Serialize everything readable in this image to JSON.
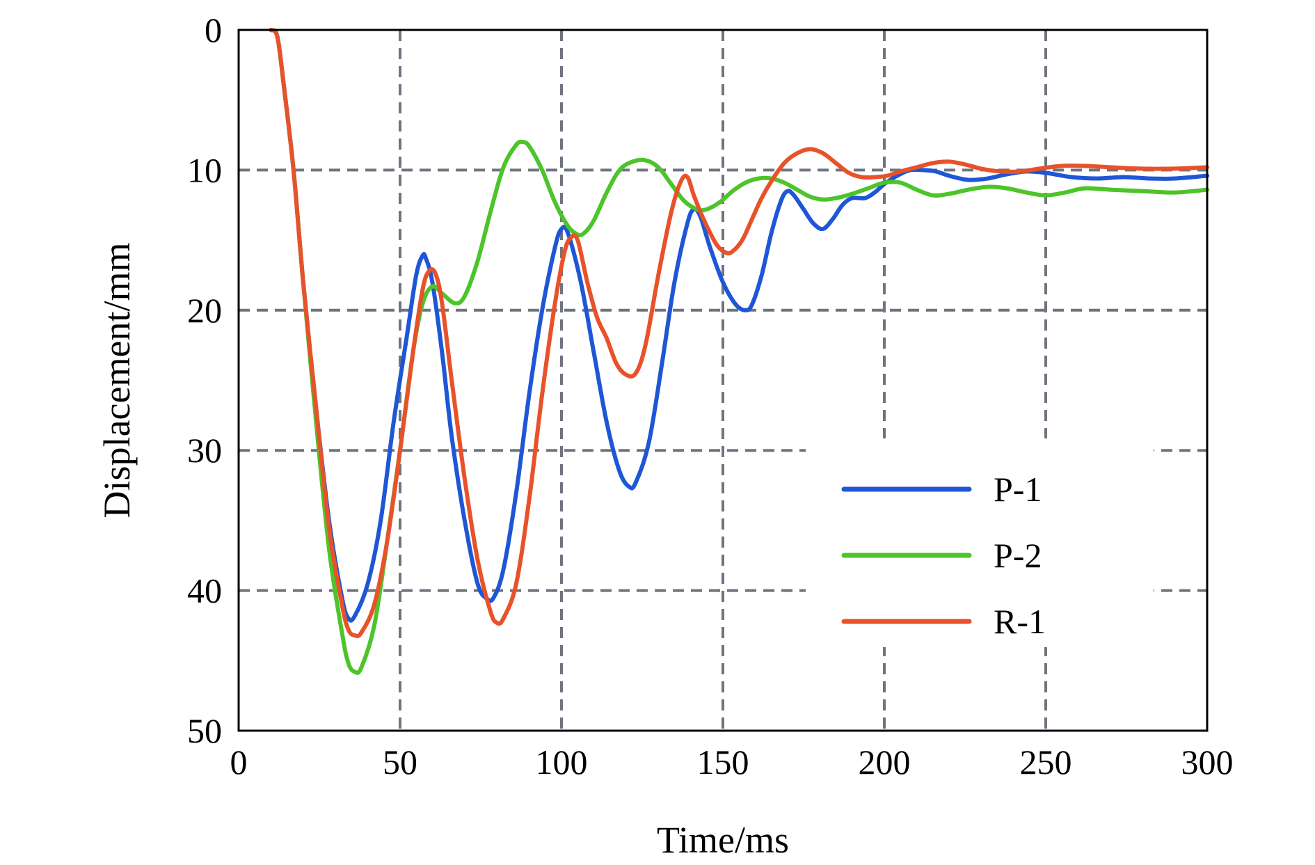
{
  "chart_data": {
    "type": "line",
    "title": "",
    "xlabel": "Time/ms",
    "ylabel": "Displacement/mm",
    "xlim": [
      0,
      300
    ],
    "ylim": [
      0,
      50
    ],
    "y_inverted": true,
    "grid": true,
    "legend_position": "bottom-right",
    "xticks": [
      "0",
      "50",
      "100",
      "150",
      "200",
      "250",
      "300"
    ],
    "yticks": [
      "0",
      "10",
      "20",
      "30",
      "40",
      "50"
    ],
    "series": [
      {
        "name": "P-1",
        "color": "#1f56d6",
        "points": [
          [
            10,
            0
          ],
          [
            12,
            0.5
          ],
          [
            14,
            4
          ],
          [
            17,
            10
          ],
          [
            20,
            18
          ],
          [
            24,
            27
          ],
          [
            28,
            35
          ],
          [
            32,
            40.5
          ],
          [
            34,
            42
          ],
          [
            36,
            41.8
          ],
          [
            40,
            39.5
          ],
          [
            44,
            35
          ],
          [
            48,
            28
          ],
          [
            52,
            22
          ],
          [
            55,
            17.5
          ],
          [
            57,
            16.1
          ],
          [
            58,
            16.3
          ],
          [
            60,
            18
          ],
          [
            63,
            23
          ],
          [
            66,
            29
          ],
          [
            70,
            35
          ],
          [
            74,
            39.5
          ],
          [
            77,
            40.6
          ],
          [
            79,
            40.5
          ],
          [
            82,
            38.5
          ],
          [
            86,
            33
          ],
          [
            90,
            26
          ],
          [
            94,
            20
          ],
          [
            98,
            15.5
          ],
          [
            100,
            14.2
          ],
          [
            102,
            14.5
          ],
          [
            106,
            18
          ],
          [
            110,
            23
          ],
          [
            114,
            28
          ],
          [
            118,
            31.5
          ],
          [
            121,
            32.6
          ],
          [
            123,
            32.3
          ],
          [
            127,
            29.5
          ],
          [
            131,
            24
          ],
          [
            135,
            18
          ],
          [
            139,
            13.8
          ],
          [
            141,
            12.8
          ],
          [
            143,
            13.3
          ],
          [
            146,
            15.5
          ],
          [
            150,
            18
          ],
          [
            154,
            19.6
          ],
          [
            157,
            20
          ],
          [
            159,
            19.6
          ],
          [
            162,
            17.5
          ],
          [
            165,
            14.5
          ],
          [
            168,
            12.2
          ],
          [
            170,
            11.5
          ],
          [
            172,
            11.8
          ],
          [
            175,
            12.8
          ],
          [
            178,
            13.8
          ],
          [
            181,
            14.2
          ],
          [
            184,
            13.5
          ],
          [
            187,
            12.5
          ],
          [
            190,
            12
          ],
          [
            194,
            12
          ],
          [
            197,
            11.6
          ],
          [
            200,
            11
          ],
          [
            204,
            10.4
          ],
          [
            208,
            10
          ],
          [
            212,
            10
          ],
          [
            216,
            10.1
          ],
          [
            220,
            10.4
          ],
          [
            226,
            10.7
          ],
          [
            232,
            10.6
          ],
          [
            238,
            10.3
          ],
          [
            244,
            10.1
          ],
          [
            250,
            10.2
          ],
          [
            258,
            10.5
          ],
          [
            266,
            10.6
          ],
          [
            274,
            10.5
          ],
          [
            282,
            10.6
          ],
          [
            290,
            10.6
          ],
          [
            300,
            10.4
          ]
        ]
      },
      {
        "name": "P-2",
        "color": "#4cc42a",
        "points": [
          [
            10,
            0
          ],
          [
            12,
            0.5
          ],
          [
            14,
            4
          ],
          [
            17,
            10
          ],
          [
            20,
            18
          ],
          [
            24,
            28
          ],
          [
            28,
            37
          ],
          [
            32,
            43
          ],
          [
            34,
            45.2
          ],
          [
            36,
            45.8
          ],
          [
            38,
            45.5
          ],
          [
            42,
            42.5
          ],
          [
            46,
            36.5
          ],
          [
            50,
            30
          ],
          [
            54,
            23
          ],
          [
            57,
            19.5
          ],
          [
            60,
            18.3
          ],
          [
            63,
            18.8
          ],
          [
            67,
            19.5
          ],
          [
            70,
            19
          ],
          [
            74,
            16.5
          ],
          [
            78,
            13
          ],
          [
            82,
            9.8
          ],
          [
            86,
            8.2
          ],
          [
            88,
            8
          ],
          [
            90,
            8.3
          ],
          [
            94,
            10
          ],
          [
            98,
            12.3
          ],
          [
            102,
            14
          ],
          [
            105,
            14.6
          ],
          [
            107,
            14.5
          ],
          [
            110,
            13.6
          ],
          [
            114,
            11.6
          ],
          [
            118,
            10
          ],
          [
            122,
            9.4
          ],
          [
            126,
            9.3
          ],
          [
            130,
            9.8
          ],
          [
            134,
            11
          ],
          [
            138,
            12.2
          ],
          [
            142,
            12.8
          ],
          [
            145,
            12.8
          ],
          [
            149,
            12.3
          ],
          [
            153,
            11.5
          ],
          [
            157,
            10.9
          ],
          [
            161,
            10.6
          ],
          [
            165,
            10.6
          ],
          [
            169,
            10.9
          ],
          [
            173,
            11.4
          ],
          [
            177,
            11.9
          ],
          [
            181,
            12.1
          ],
          [
            185,
            12
          ],
          [
            190,
            11.7
          ],
          [
            195,
            11.3
          ],
          [
            200,
            10.9
          ],
          [
            205,
            10.9
          ],
          [
            210,
            11.4
          ],
          [
            215,
            11.8
          ],
          [
            220,
            11.7
          ],
          [
            226,
            11.4
          ],
          [
            232,
            11.2
          ],
          [
            238,
            11.3
          ],
          [
            244,
            11.6
          ],
          [
            250,
            11.8
          ],
          [
            256,
            11.6
          ],
          [
            262,
            11.3
          ],
          [
            270,
            11.4
          ],
          [
            280,
            11.5
          ],
          [
            290,
            11.6
          ],
          [
            300,
            11.4
          ]
        ]
      },
      {
        "name": "R-1",
        "color": "#e8522a",
        "points": [
          [
            10,
            0
          ],
          [
            12,
            0.5
          ],
          [
            14,
            4
          ],
          [
            17,
            10
          ],
          [
            20,
            18
          ],
          [
            24,
            27
          ],
          [
            28,
            35.5
          ],
          [
            32,
            41
          ],
          [
            34,
            42.8
          ],
          [
            36,
            43.2
          ],
          [
            38,
            43
          ],
          [
            42,
            41
          ],
          [
            46,
            36.5
          ],
          [
            50,
            30
          ],
          [
            54,
            23
          ],
          [
            57,
            18.5
          ],
          [
            59,
            17.2
          ],
          [
            61,
            17.4
          ],
          [
            63,
            19.5
          ],
          [
            66,
            25
          ],
          [
            70,
            32
          ],
          [
            74,
            37.8
          ],
          [
            78,
            41.5
          ],
          [
            80,
            42.3
          ],
          [
            82,
            42
          ],
          [
            86,
            39.5
          ],
          [
            90,
            33.5
          ],
          [
            94,
            26
          ],
          [
            98,
            19.5
          ],
          [
            101,
            15.8
          ],
          [
            103,
            14.8
          ],
          [
            105,
            15
          ],
          [
            108,
            18
          ],
          [
            111,
            20.5
          ],
          [
            114,
            22
          ],
          [
            117,
            23.8
          ],
          [
            120,
            24.6
          ],
          [
            123,
            24.5
          ],
          [
            126,
            22.5
          ],
          [
            130,
            17.5
          ],
          [
            134,
            13
          ],
          [
            137,
            10.8
          ],
          [
            139,
            10.5
          ],
          [
            141,
            11.8
          ],
          [
            144,
            13.5
          ],
          [
            148,
            15.3
          ],
          [
            151,
            15.9
          ],
          [
            153,
            15.8
          ],
          [
            156,
            15
          ],
          [
            159,
            13.5
          ],
          [
            162,
            12
          ],
          [
            165,
            10.8
          ],
          [
            169,
            9.5
          ],
          [
            173,
            8.8
          ],
          [
            177,
            8.5
          ],
          [
            181,
            8.8
          ],
          [
            185,
            9.5
          ],
          [
            189,
            10.2
          ],
          [
            193,
            10.5
          ],
          [
            197,
            10.5
          ],
          [
            201,
            10.4
          ],
          [
            205,
            10.1
          ],
          [
            210,
            9.8
          ],
          [
            215,
            9.5
          ],
          [
            220,
            9.4
          ],
          [
            225,
            9.6
          ],
          [
            230,
            9.9
          ],
          [
            236,
            10.1
          ],
          [
            242,
            10.1
          ],
          [
            248,
            9.9
          ],
          [
            255,
            9.7
          ],
          [
            262,
            9.7
          ],
          [
            270,
            9.8
          ],
          [
            280,
            9.9
          ],
          [
            290,
            9.9
          ],
          [
            300,
            9.8
          ]
        ]
      }
    ]
  }
}
